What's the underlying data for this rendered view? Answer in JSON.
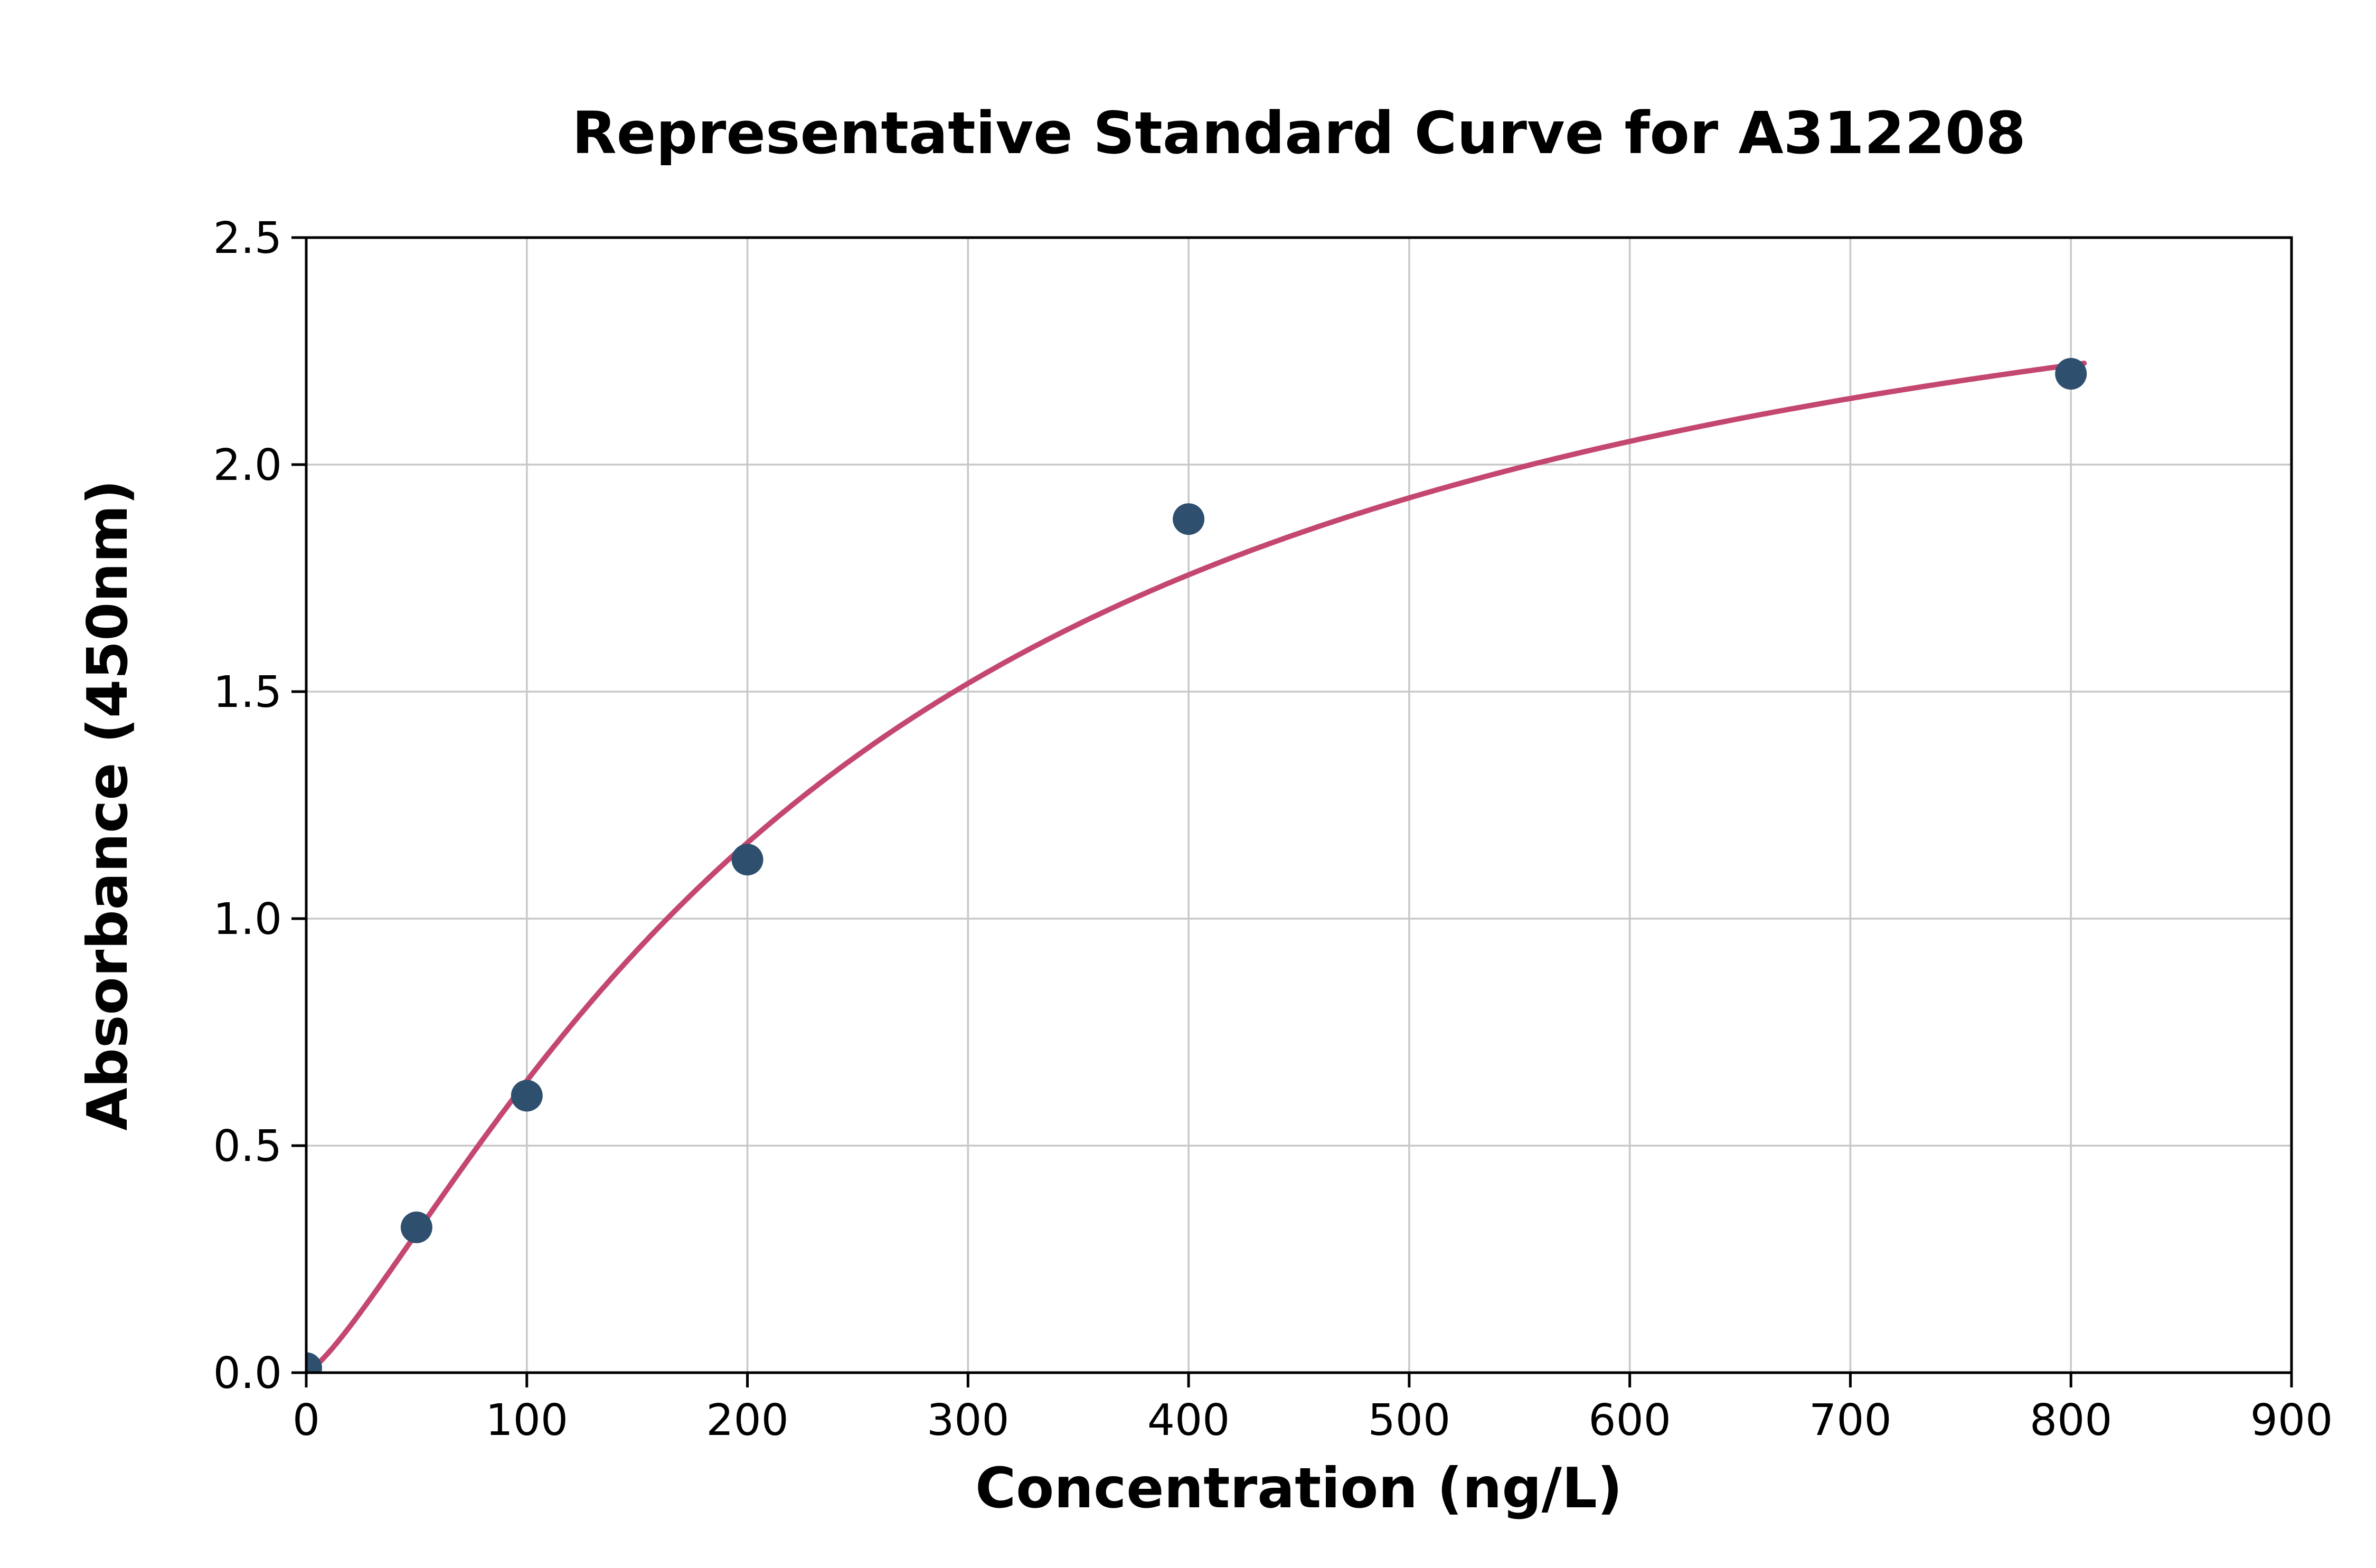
{
  "page": {
    "background": "#ffffff"
  },
  "chart_data": {
    "type": "scatter",
    "title": "Representative Standard Curve for A312208",
    "xlabel": "Concentration (ng/L)",
    "ylabel": "Absorbance (450nm)",
    "xlim": [
      0,
      900
    ],
    "ylim": [
      0,
      2.5
    ],
    "xticks": [
      0,
      100,
      200,
      300,
      400,
      500,
      600,
      700,
      800,
      900
    ],
    "xtick_labels": [
      "0",
      "100",
      "200",
      "300",
      "400",
      "500",
      "600",
      "700",
      "800",
      "900"
    ],
    "yticks": [
      0,
      0.5,
      1,
      1.5,
      2,
      2.5
    ],
    "ytick_labels": [
      "0.0",
      "0.5",
      "1.0",
      "1.5",
      "2.0",
      "2.5"
    ],
    "grid": true,
    "grid_color": "#c8c8c8",
    "spine_color": "#000000",
    "points": [
      [
        0,
        0.01
      ],
      [
        50,
        0.32
      ],
      [
        100,
        0.61
      ],
      [
        200,
        1.13
      ],
      [
        400,
        1.88
      ],
      [
        800,
        2.2
      ]
    ],
    "point_color": "#2f4f6f",
    "curve_color": "#c4476f",
    "fit": {
      "model": "hill",
      "d": 2.72,
      "c": 250,
      "b": 1.28,
      "x_start": 0,
      "x_end": 806
    }
  }
}
